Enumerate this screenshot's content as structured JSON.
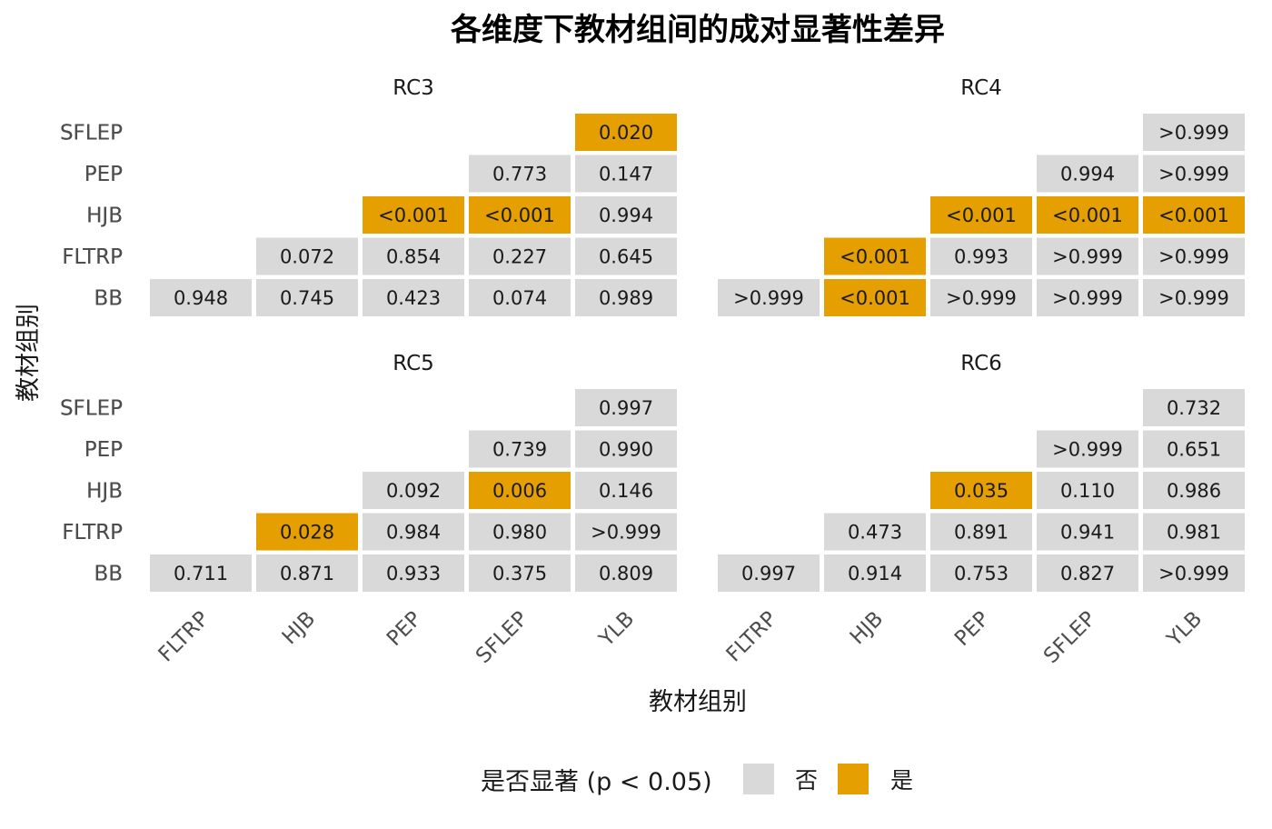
{
  "chart_data": {
    "type": "heatmap",
    "title": "各维度下教材组间的成对显著性差异",
    "xlabel": "教材组别",
    "ylabel": "教材组别",
    "x_categories": [
      "FLTRP",
      "HJB",
      "PEP",
      "SFLEP",
      "YLB"
    ],
    "y_categories": [
      "BB",
      "FLTRP",
      "HJB",
      "PEP",
      "SFLEP"
    ],
    "legend": {
      "title": "是否显著 (p < 0.05)",
      "placement": "bottom",
      "entries": [
        {
          "label": "否",
          "color": "#d9d9d9"
        },
        {
          "label": "是",
          "color": "#e69f00"
        }
      ]
    },
    "panels": [
      {
        "name": "RC3",
        "cells": [
          {
            "x": "FLTRP",
            "y": "BB",
            "label": "0.948",
            "significant": false
          },
          {
            "x": "HJB",
            "y": "BB",
            "label": "0.745",
            "significant": false
          },
          {
            "x": "PEP",
            "y": "BB",
            "label": "0.423",
            "significant": false
          },
          {
            "x": "SFLEP",
            "y": "BB",
            "label": "0.074",
            "significant": false
          },
          {
            "x": "YLB",
            "y": "BB",
            "label": "0.989",
            "significant": false
          },
          {
            "x": "HJB",
            "y": "FLTRP",
            "label": "0.072",
            "significant": false
          },
          {
            "x": "PEP",
            "y": "FLTRP",
            "label": "0.854",
            "significant": false
          },
          {
            "x": "SFLEP",
            "y": "FLTRP",
            "label": "0.227",
            "significant": false
          },
          {
            "x": "YLB",
            "y": "FLTRP",
            "label": "0.645",
            "significant": false
          },
          {
            "x": "PEP",
            "y": "HJB",
            "label": "<0.001",
            "significant": true
          },
          {
            "x": "SFLEP",
            "y": "HJB",
            "label": "<0.001",
            "significant": true
          },
          {
            "x": "YLB",
            "y": "HJB",
            "label": "0.994",
            "significant": false
          },
          {
            "x": "SFLEP",
            "y": "PEP",
            "label": "0.773",
            "significant": false
          },
          {
            "x": "YLB",
            "y": "PEP",
            "label": "0.147",
            "significant": false
          },
          {
            "x": "YLB",
            "y": "SFLEP",
            "label": "0.020",
            "significant": true
          }
        ]
      },
      {
        "name": "RC4",
        "cells": [
          {
            "x": "FLTRP",
            "y": "BB",
            "label": ">0.999",
            "significant": false
          },
          {
            "x": "HJB",
            "y": "BB",
            "label": "<0.001",
            "significant": true
          },
          {
            "x": "PEP",
            "y": "BB",
            "label": ">0.999",
            "significant": false
          },
          {
            "x": "SFLEP",
            "y": "BB",
            "label": ">0.999",
            "significant": false
          },
          {
            "x": "YLB",
            "y": "BB",
            "label": ">0.999",
            "significant": false
          },
          {
            "x": "HJB",
            "y": "FLTRP",
            "label": "<0.001",
            "significant": true
          },
          {
            "x": "PEP",
            "y": "FLTRP",
            "label": "0.993",
            "significant": false
          },
          {
            "x": "SFLEP",
            "y": "FLTRP",
            "label": ">0.999",
            "significant": false
          },
          {
            "x": "YLB",
            "y": "FLTRP",
            "label": ">0.999",
            "significant": false
          },
          {
            "x": "PEP",
            "y": "HJB",
            "label": "<0.001",
            "significant": true
          },
          {
            "x": "SFLEP",
            "y": "HJB",
            "label": "<0.001",
            "significant": true
          },
          {
            "x": "YLB",
            "y": "HJB",
            "label": "<0.001",
            "significant": true
          },
          {
            "x": "SFLEP",
            "y": "PEP",
            "label": "0.994",
            "significant": false
          },
          {
            "x": "YLB",
            "y": "PEP",
            "label": ">0.999",
            "significant": false
          },
          {
            "x": "YLB",
            "y": "SFLEP",
            "label": ">0.999",
            "significant": false
          }
        ]
      },
      {
        "name": "RC5",
        "cells": [
          {
            "x": "FLTRP",
            "y": "BB",
            "label": "0.711",
            "significant": false
          },
          {
            "x": "HJB",
            "y": "BB",
            "label": "0.871",
            "significant": false
          },
          {
            "x": "PEP",
            "y": "BB",
            "label": "0.933",
            "significant": false
          },
          {
            "x": "SFLEP",
            "y": "BB",
            "label": "0.375",
            "significant": false
          },
          {
            "x": "YLB",
            "y": "BB",
            "label": "0.809",
            "significant": false
          },
          {
            "x": "HJB",
            "y": "FLTRP",
            "label": "0.028",
            "significant": true
          },
          {
            "x": "PEP",
            "y": "FLTRP",
            "label": "0.984",
            "significant": false
          },
          {
            "x": "SFLEP",
            "y": "FLTRP",
            "label": "0.980",
            "significant": false
          },
          {
            "x": "YLB",
            "y": "FLTRP",
            "label": ">0.999",
            "significant": false
          },
          {
            "x": "PEP",
            "y": "HJB",
            "label": "0.092",
            "significant": false
          },
          {
            "x": "SFLEP",
            "y": "HJB",
            "label": "0.006",
            "significant": true
          },
          {
            "x": "YLB",
            "y": "HJB",
            "label": "0.146",
            "significant": false
          },
          {
            "x": "SFLEP",
            "y": "PEP",
            "label": "0.739",
            "significant": false
          },
          {
            "x": "YLB",
            "y": "PEP",
            "label": "0.990",
            "significant": false
          },
          {
            "x": "YLB",
            "y": "SFLEP",
            "label": "0.997",
            "significant": false
          }
        ]
      },
      {
        "name": "RC6",
        "cells": [
          {
            "x": "FLTRP",
            "y": "BB",
            "label": "0.997",
            "significant": false
          },
          {
            "x": "HJB",
            "y": "BB",
            "label": "0.914",
            "significant": false
          },
          {
            "x": "PEP",
            "y": "BB",
            "label": "0.753",
            "significant": false
          },
          {
            "x": "SFLEP",
            "y": "BB",
            "label": "0.827",
            "significant": false
          },
          {
            "x": "YLB",
            "y": "BB",
            "label": ">0.999",
            "significant": false
          },
          {
            "x": "HJB",
            "y": "FLTRP",
            "label": "0.473",
            "significant": false
          },
          {
            "x": "PEP",
            "y": "FLTRP",
            "label": "0.891",
            "significant": false
          },
          {
            "x": "SFLEP",
            "y": "FLTRP",
            "label": "0.941",
            "significant": false
          },
          {
            "x": "YLB",
            "y": "FLTRP",
            "label": "0.981",
            "significant": false
          },
          {
            "x": "PEP",
            "y": "HJB",
            "label": "0.035",
            "significant": true
          },
          {
            "x": "SFLEP",
            "y": "HJB",
            "label": "0.110",
            "significant": false
          },
          {
            "x": "YLB",
            "y": "HJB",
            "label": "0.986",
            "significant": false
          },
          {
            "x": "SFLEP",
            "y": "PEP",
            "label": ">0.999",
            "significant": false
          },
          {
            "x": "YLB",
            "y": "PEP",
            "label": "0.651",
            "significant": false
          },
          {
            "x": "YLB",
            "y": "SFLEP",
            "label": "0.732",
            "significant": false
          }
        ]
      }
    ]
  }
}
